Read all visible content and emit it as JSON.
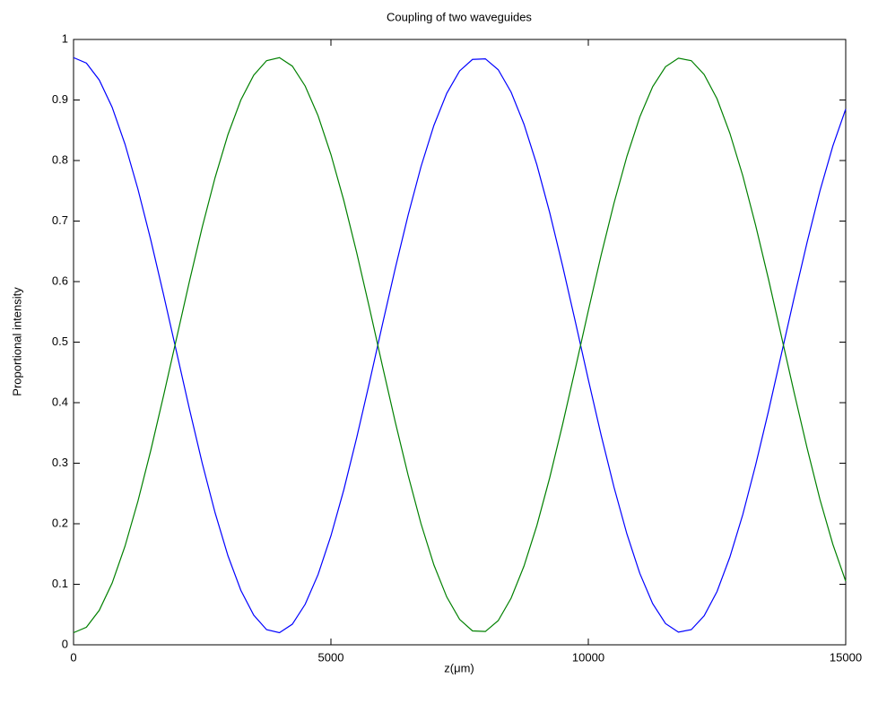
{
  "chart_data": {
    "type": "line",
    "title": "Coupling of two waveguides",
    "xlabel": "z(μm)",
    "ylabel": "Proportional intensity",
    "x": [
      0,
      250,
      500,
      750,
      1000,
      1250,
      1500,
      1750,
      2000,
      2250,
      2500,
      2750,
      3000,
      3250,
      3500,
      3750,
      4000,
      4250,
      4500,
      4750,
      5000,
      5250,
      5500,
      5750,
      6000,
      6250,
      6500,
      6750,
      7000,
      7250,
      7500,
      7750,
      8000,
      8250,
      8500,
      8750,
      9000,
      9250,
      9500,
      9750,
      10000,
      10250,
      10500,
      10750,
      11000,
      11250,
      11500,
      11750,
      12000,
      12250,
      12500,
      12750,
      13000,
      13250,
      13500,
      13750,
      14000,
      14250,
      14500,
      14750,
      15000
    ],
    "series": [
      {
        "color": "#0000ff",
        "values": [
          0.97,
          0.961,
          0.933,
          0.888,
          0.827,
          0.753,
          0.669,
          0.578,
          0.484,
          0.39,
          0.3,
          0.218,
          0.147,
          0.09,
          0.049,
          0.025,
          0.02,
          0.034,
          0.067,
          0.116,
          0.18,
          0.256,
          0.342,
          0.434,
          0.529,
          0.622,
          0.71,
          0.79,
          0.858,
          0.911,
          0.948,
          0.967,
          0.968,
          0.95,
          0.913,
          0.86,
          0.793,
          0.714,
          0.626,
          0.533,
          0.438,
          0.346,
          0.26,
          0.183,
          0.118,
          0.068,
          0.035,
          0.021,
          0.025,
          0.048,
          0.088,
          0.145,
          0.215,
          0.297,
          0.386,
          0.48,
          0.574,
          0.665,
          0.75,
          0.824,
          0.885
        ]
      },
      {
        "color": "#008000",
        "values": [
          0.02,
          0.029,
          0.057,
          0.102,
          0.163,
          0.237,
          0.321,
          0.412,
          0.506,
          0.6,
          0.69,
          0.772,
          0.843,
          0.9,
          0.941,
          0.965,
          0.97,
          0.956,
          0.923,
          0.874,
          0.81,
          0.734,
          0.648,
          0.556,
          0.461,
          0.368,
          0.28,
          0.2,
          0.132,
          0.079,
          0.042,
          0.023,
          0.022,
          0.04,
          0.077,
          0.13,
          0.197,
          0.276,
          0.364,
          0.457,
          0.552,
          0.644,
          0.73,
          0.807,
          0.872,
          0.922,
          0.955,
          0.969,
          0.965,
          0.942,
          0.902,
          0.845,
          0.775,
          0.693,
          0.604,
          0.51,
          0.416,
          0.325,
          0.24,
          0.166,
          0.105
        ]
      }
    ],
    "xlim": [
      0,
      15000
    ],
    "xticks": [
      0,
      5000,
      10000,
      15000
    ],
    "ylim": [
      0,
      1
    ],
    "yticks": [
      0,
      0.1,
      0.2,
      0.3,
      0.4,
      0.5,
      0.6,
      0.7,
      0.8,
      0.9,
      1
    ],
    "grid": false
  }
}
